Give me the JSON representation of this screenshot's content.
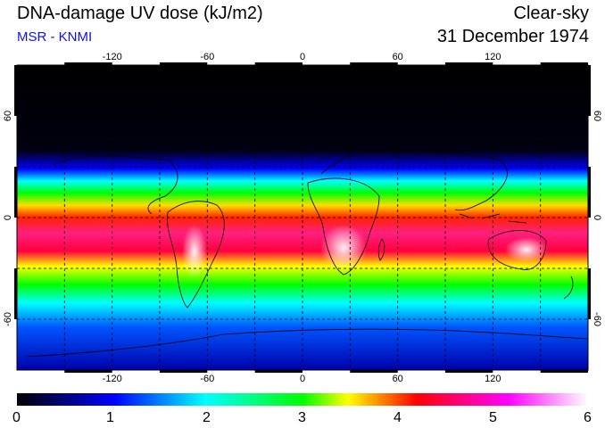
{
  "header": {
    "title": "DNA-damage UV dose (kJ/m2)",
    "subtitle": "MSR - KNMI",
    "mode": "Clear-sky",
    "date": "31 December 1974"
  },
  "map": {
    "projection": "equirectangular",
    "lon_range": [
      -180,
      180
    ],
    "lat_range": [
      -90,
      90
    ],
    "lon_ticks": [
      "-120",
      "-60",
      "0",
      "60",
      "120"
    ],
    "lat_ticks": [
      "60",
      "0",
      "-60"
    ],
    "grid": "dashed, 30 degree spacing"
  },
  "colorbar": {
    "min": 0,
    "max": 6,
    "labels": [
      "0",
      "1",
      "2",
      "3",
      "4",
      "5",
      "6"
    ],
    "colors": [
      "#000000",
      "#0000ff",
      "#00ffff",
      "#00ff00",
      "#ffff00",
      "#ff0000",
      "#ff00ff",
      "#ffffff"
    ]
  }
}
